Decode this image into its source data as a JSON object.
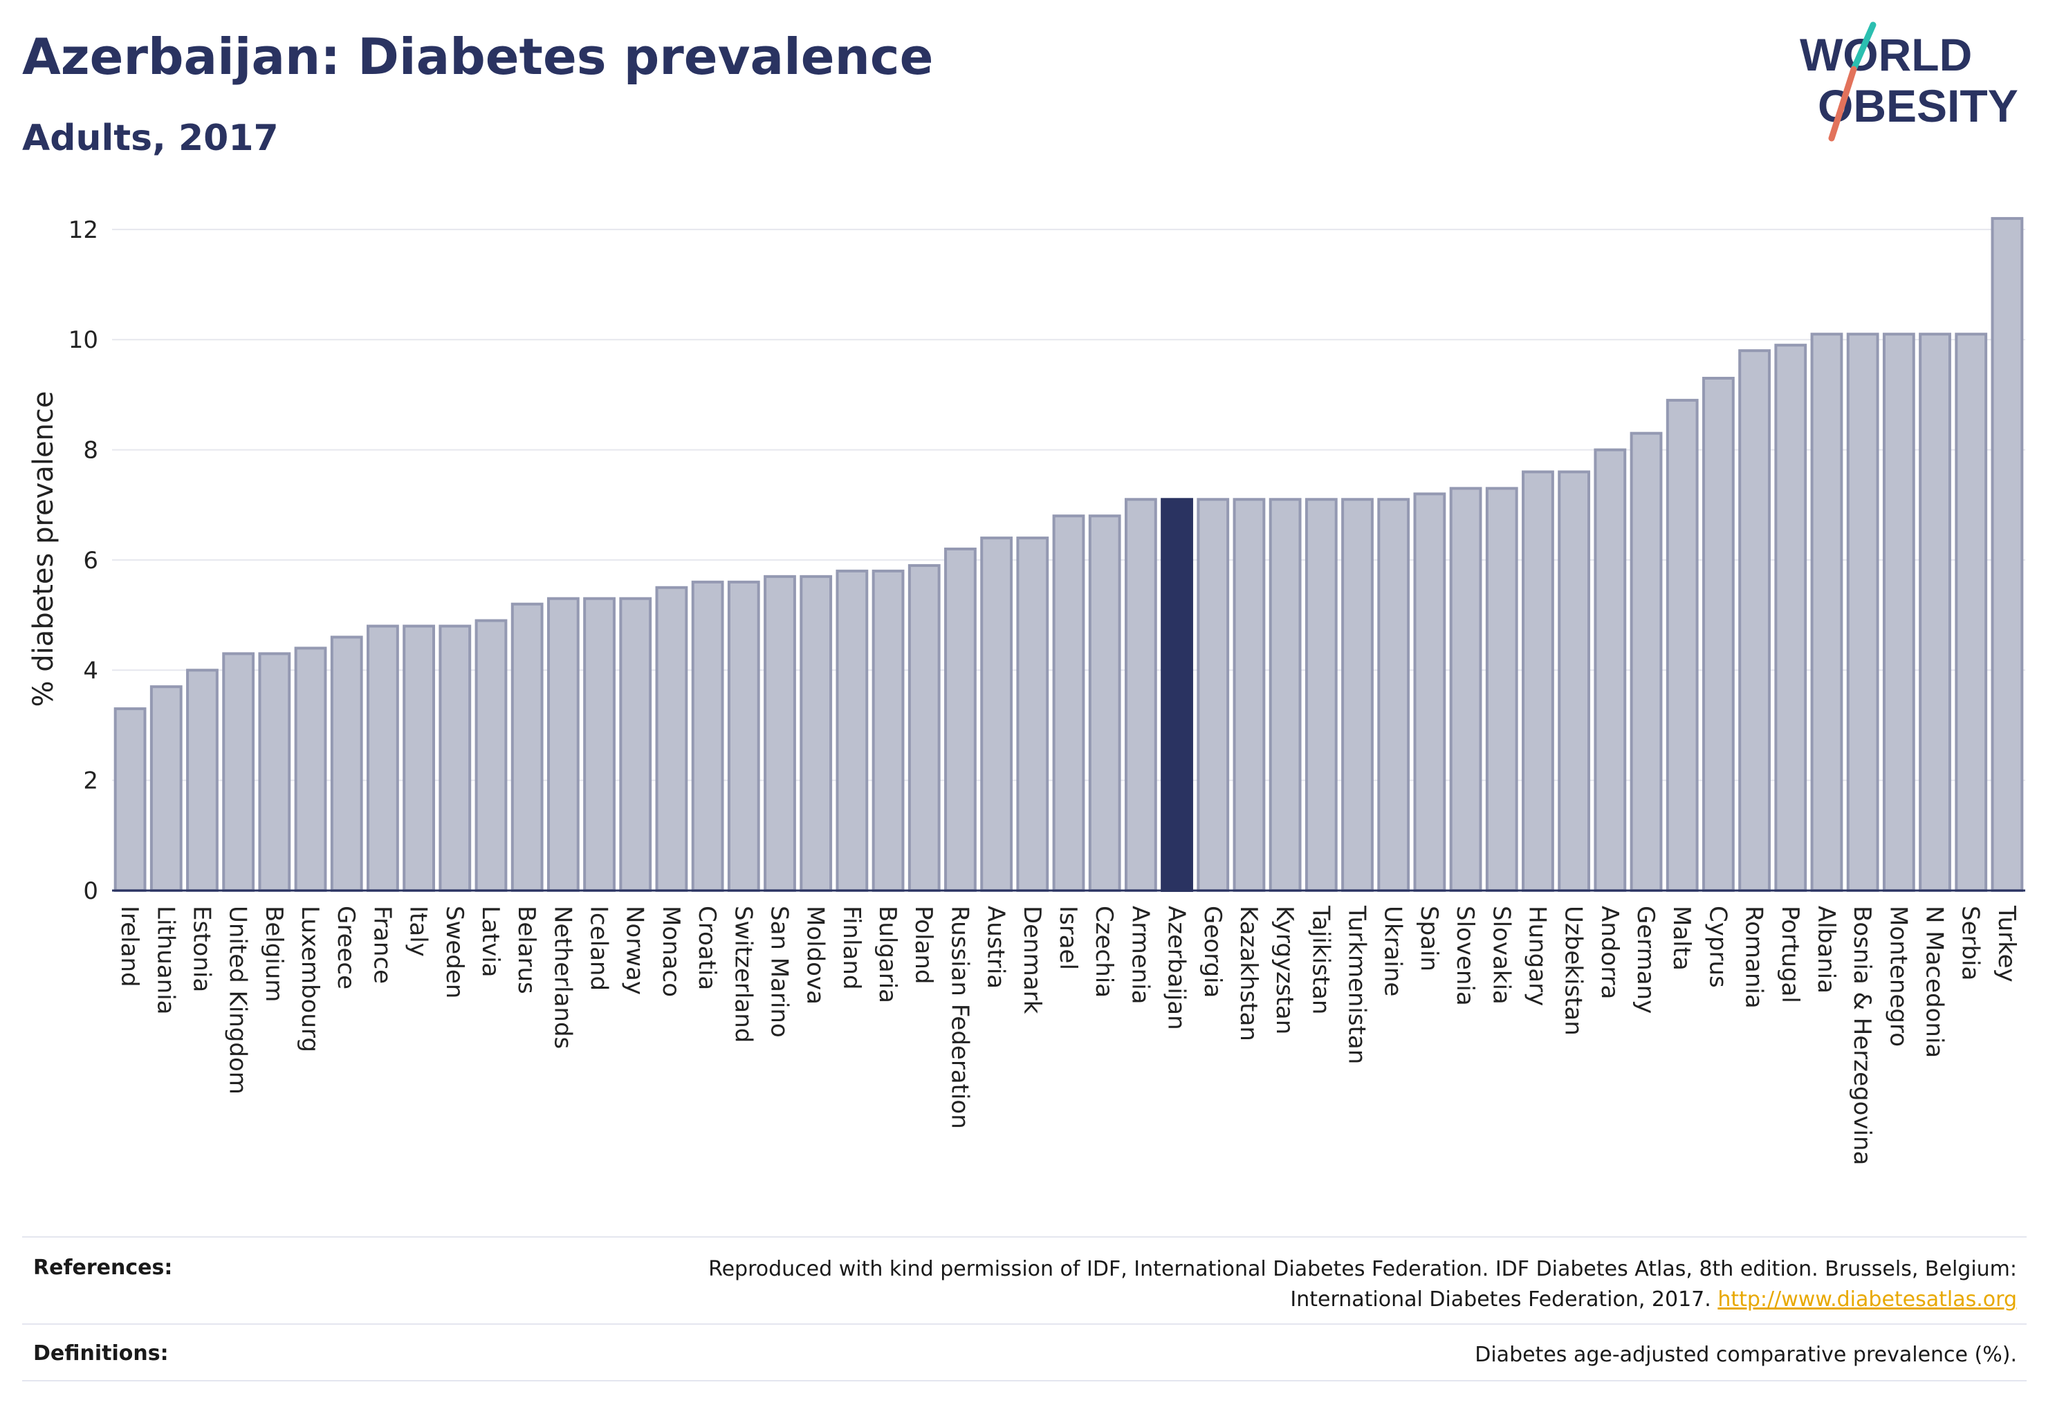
{
  "header": {
    "title": "Azerbaijan: Diabetes prevalence",
    "subtitle": "Adults, 2017"
  },
  "logo": {
    "line1": "WORLD",
    "line2": "OBESITY",
    "colors": {
      "text": "#2a3361",
      "slash_teal": "#2bbfb0",
      "slash_coral": "#e2725b"
    }
  },
  "chart_data": {
    "type": "bar",
    "ylabel": "% diabetes prevalence",
    "xlabel": "",
    "ylim": [
      0,
      12.4
    ],
    "yticks": [
      0,
      2,
      4,
      6,
      8,
      10,
      12
    ],
    "grid": true,
    "highlight": "Azerbaijan",
    "colors": {
      "bar": "#bcc0cf",
      "bar_stroke": "#9499b2",
      "highlight": "#2a3361"
    },
    "categories": [
      "Ireland",
      "Lithuania",
      "Estonia",
      "United Kingdom",
      "Belgium",
      "Luxembourg",
      "Greece",
      "France",
      "Italy",
      "Sweden",
      "Latvia",
      "Belarus",
      "Netherlands",
      "Iceland",
      "Norway",
      "Monaco",
      "Croatia",
      "Switzerland",
      "San Marino",
      "Moldova",
      "Finland",
      "Bulgaria",
      "Poland",
      "Russian Federation",
      "Austria",
      "Denmark",
      "Israel",
      "Czechia",
      "Armenia",
      "Azerbaijan",
      "Georgia",
      "Kazakhstan",
      "Kyrgyzstan",
      "Tajikistan",
      "Turkmenistan",
      "Ukraine",
      "Spain",
      "Slovenia",
      "Slovakia",
      "Hungary",
      "Uzbekistan",
      "Andorra",
      "Germany",
      "Malta",
      "Cyprus",
      "Romania",
      "Portugal",
      "Albania",
      "Bosnia & Herzegovina",
      "Montenegro",
      "N Macedonia",
      "Serbia",
      "Turkey"
    ],
    "values": [
      3.3,
      3.7,
      4.0,
      4.3,
      4.3,
      4.4,
      4.6,
      4.8,
      4.8,
      4.8,
      4.9,
      5.2,
      5.3,
      5.3,
      5.3,
      5.5,
      5.6,
      5.6,
      5.7,
      5.7,
      5.8,
      5.8,
      5.9,
      6.2,
      6.4,
      6.4,
      6.8,
      6.8,
      7.1,
      7.1,
      7.1,
      7.1,
      7.1,
      7.1,
      7.1,
      7.1,
      7.2,
      7.3,
      7.3,
      7.6,
      7.6,
      8.0,
      8.3,
      8.9,
      9.3,
      9.8,
      9.9,
      10.1,
      10.1,
      10.1,
      10.1,
      10.1,
      12.2
    ]
  },
  "footer": {
    "references_label": "References:",
    "references_text": "Reproduced with kind permission of IDF, International Diabetes Federation. IDF Diabetes Atlas, 8th edition. Brussels, Belgium: International Diabetes Federation, 2017.",
    "references_link": "http://www.diabetesatlas.org",
    "definitions_label": "Definitions:",
    "definitions_text": "Diabetes age-adjusted comparative prevalence (%)."
  }
}
